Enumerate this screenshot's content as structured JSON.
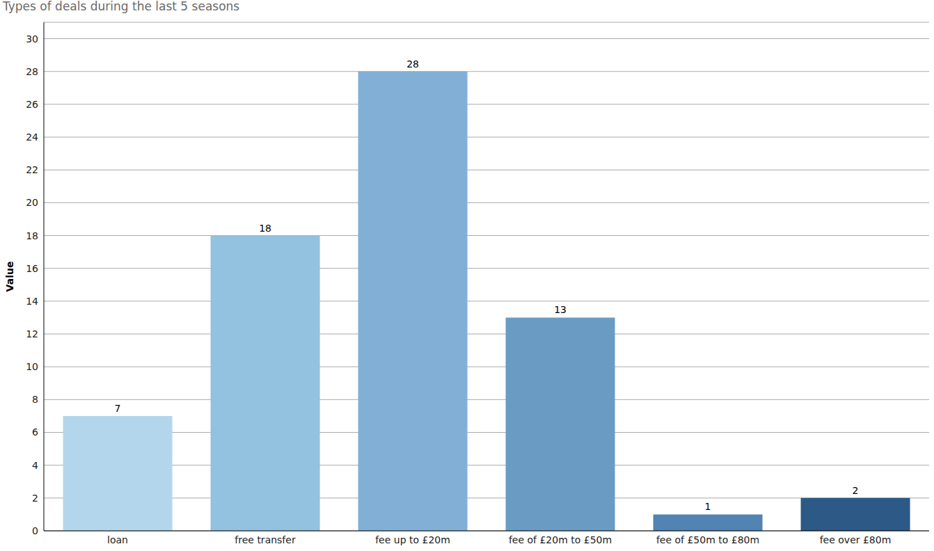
{
  "chart_data": {
    "type": "bar",
    "title": "Types of deals during the last 5 seasons",
    "y_label": "Value",
    "categories": [
      "loan",
      "free transfer",
      "fee up to £20m",
      "fee of £20m to £50m",
      "fee of £50m to £80m",
      "fee over £80m"
    ],
    "values": [
      7,
      18,
      28,
      13,
      1,
      2
    ],
    "colors": [
      "#b3d6ec",
      "#93c1e0",
      "#81afd6",
      "#6a9bc3",
      "#5383b3",
      "#2c5985"
    ],
    "ylim": [
      0,
      31
    ],
    "yticks": [
      0,
      2,
      4,
      6,
      8,
      10,
      12,
      14,
      16,
      18,
      20,
      22,
      24,
      26,
      28,
      30
    ],
    "grid": true,
    "data_labels": true
  }
}
